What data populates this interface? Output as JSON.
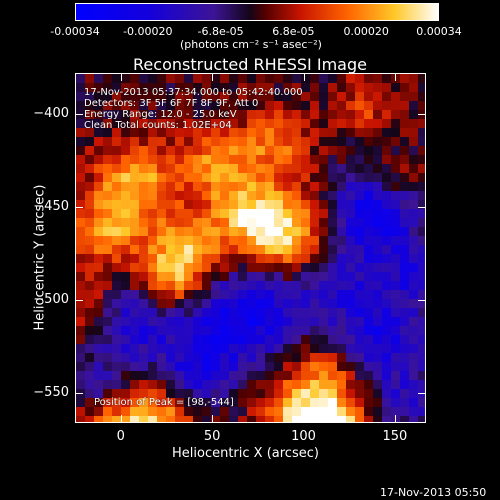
{
  "chart_data": {
    "type": "heatmap",
    "title": "Reconstructed RHESSI Image",
    "xlabel": "Heliocentric X (arcsec)",
    "ylabel": "Heliocentric Y (arcsec)",
    "xlim": [
      -25,
      167
    ],
    "ylim": [
      -566,
      -378
    ],
    "xticks": [
      "0",
      "50",
      "100",
      "150"
    ],
    "yticks": [
      "-400",
      "-450",
      "-500",
      "-550"
    ],
    "colorbar": {
      "range": [
        -0.00034,
        0.00034
      ],
      "ticks": [
        "-0.00034",
        "-0.00020",
        "-6.8e-05",
        "6.8e-05",
        "0.00020",
        "0.00034"
      ],
      "units": "(photons cm⁻² s⁻¹ asec⁻²)"
    },
    "annotations": [
      "17-Nov-2013 05:37:34.000 to 05:42:40.000",
      "Detectors: 3F 5F 6F 7F 8F 9F, Att 0",
      "Energy Range: 12.0 - 25.0 keV",
      "Clean     Total counts: 1.02E+04"
    ],
    "peak_label": "Position of Peak = [98,-544]",
    "peak_position": [
      98,
      -544
    ],
    "grid": false
  },
  "footer": {
    "timestamp": "17-Nov-2013 05:50"
  }
}
